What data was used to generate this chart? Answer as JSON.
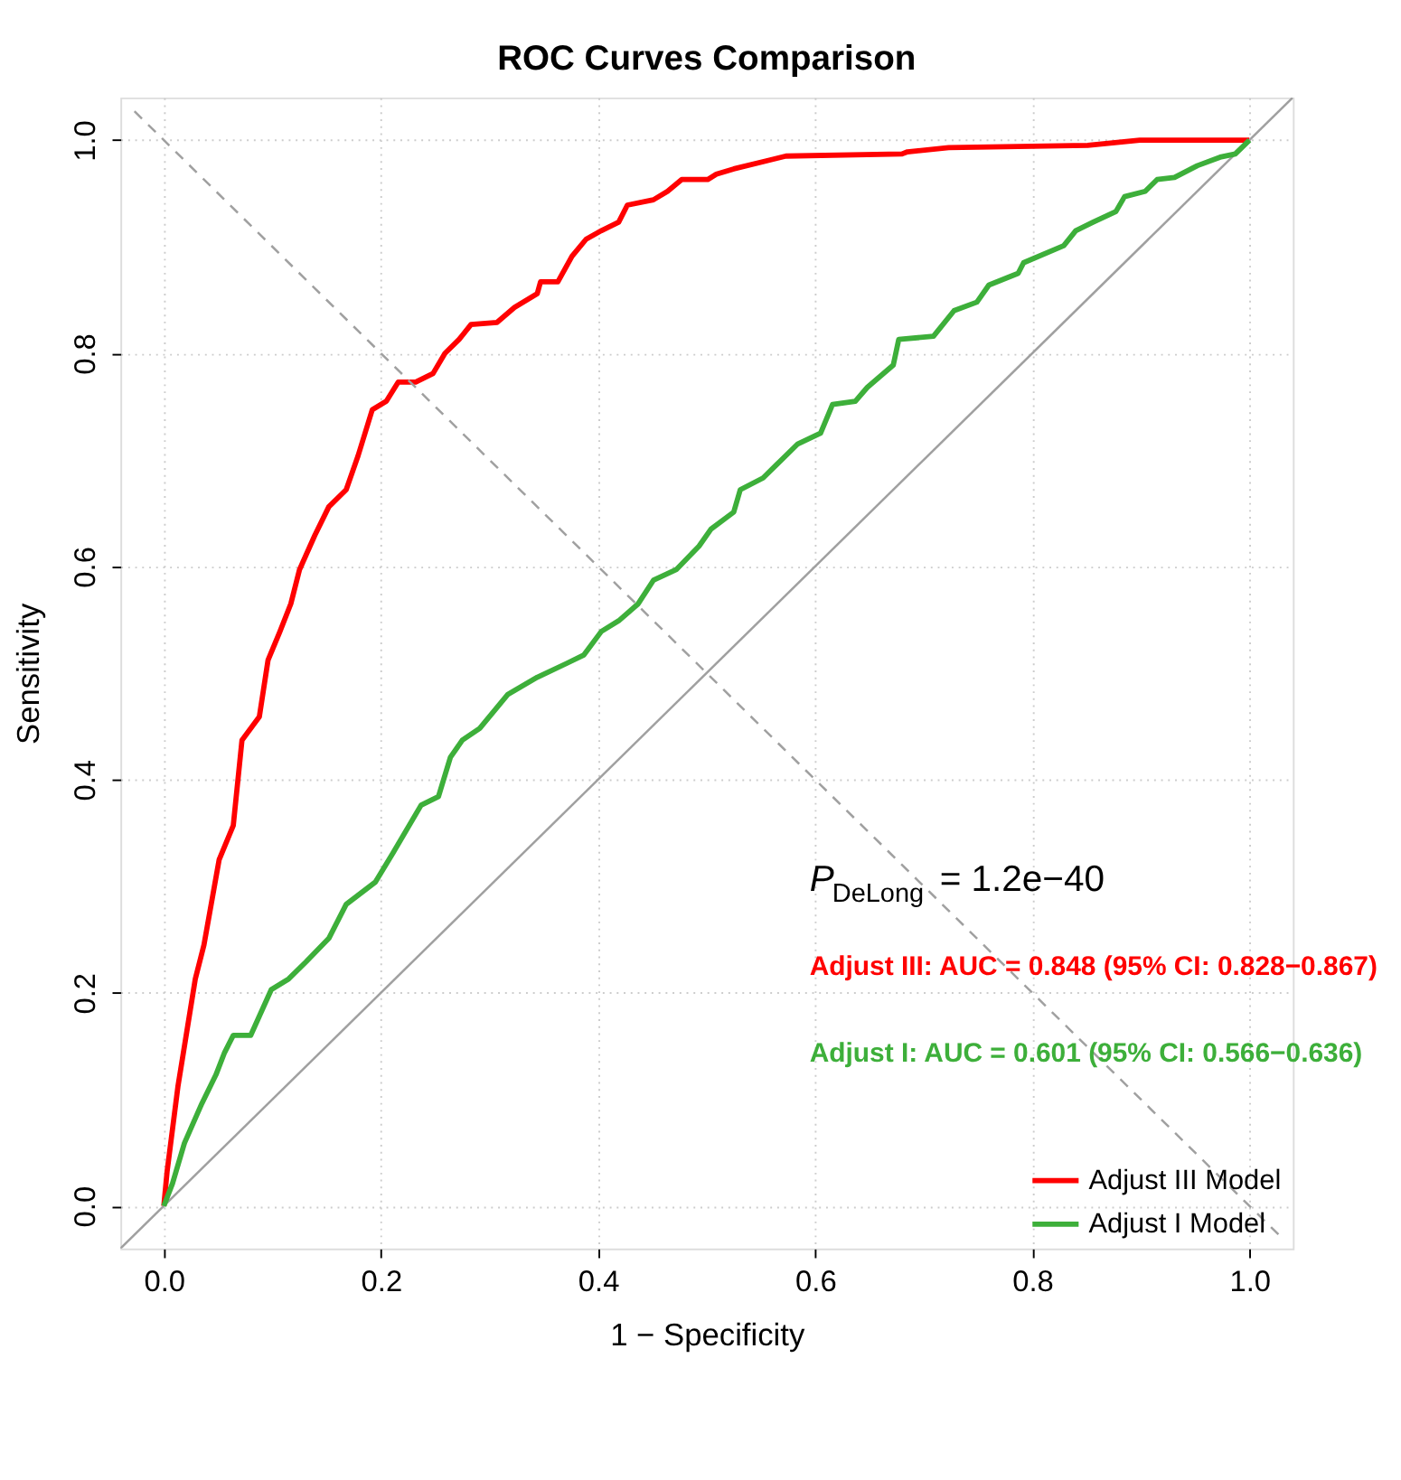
{
  "chart_data": {
    "type": "line",
    "title": "ROC Curves Comparison",
    "xlabel": "1 − Specificity",
    "ylabel": "Sensitivity",
    "xlim": [
      -0.04,
      1.04
    ],
    "ylim": [
      -0.04,
      1.04
    ],
    "xticks": [
      {
        "value": 0,
        "label": "0.0"
      },
      {
        "value": 0.2,
        "label": "0.2"
      },
      {
        "value": 0.4,
        "label": "0.4"
      },
      {
        "value": 0.6,
        "label": "0.6"
      },
      {
        "value": 0.8,
        "label": "0.8"
      },
      {
        "value": 1,
        "label": "1.0"
      }
    ],
    "yticks": [
      {
        "value": 0,
        "label": "0.0"
      },
      {
        "value": 0.2,
        "label": "0.2"
      },
      {
        "value": 0.4,
        "label": "0.4"
      },
      {
        "value": 0.6,
        "label": "0.6"
      },
      {
        "value": 0.8,
        "label": "0.8"
      },
      {
        "value": 1,
        "label": "1.0"
      }
    ],
    "grid": true,
    "legend": "bottom right",
    "marker": "none",
    "series": [
      {
        "name": "Adjust III Model",
        "color": "#ff0000",
        "line_style": "solid",
        "x": [
          0,
          0.003,
          0.013,
          0.029,
          0.037,
          0.051,
          0.064,
          0.072,
          0.088,
          0.096,
          0.107,
          0.117,
          0.125,
          0.139,
          0.152,
          0.168,
          0.179,
          0.192,
          0.205,
          0.216,
          0.232,
          0.248,
          0.259,
          0.272,
          0.283,
          0.307,
          0.323,
          0.344,
          0.347,
          0.363,
          0.376,
          0.389,
          0.403,
          0.419,
          0.427,
          0.451,
          0.464,
          0.477,
          0.501,
          0.509,
          0.525,
          0.557,
          0.573,
          0.68,
          0.685,
          0.723,
          0.851,
          0.899,
          1.0
        ],
        "values": [
          0,
          0.032,
          0.112,
          0.213,
          0.245,
          0.325,
          0.357,
          0.437,
          0.459,
          0.512,
          0.539,
          0.565,
          0.597,
          0.629,
          0.656,
          0.672,
          0.704,
          0.747,
          0.755,
          0.773,
          0.773,
          0.781,
          0.8,
          0.813,
          0.827,
          0.829,
          0.843,
          0.856,
          0.867,
          0.867,
          0.891,
          0.907,
          0.915,
          0.923,
          0.939,
          0.944,
          0.952,
          0.963,
          0.963,
          0.968,
          0.973,
          0.981,
          0.985,
          0.987,
          0.989,
          0.993,
          0.995,
          1.0,
          1.0
        ]
      },
      {
        "name": "Adjust I Model",
        "color": "#3daf3a",
        "line_style": "solid",
        "x": [
          0,
          0.008,
          0.019,
          0.035,
          0.048,
          0.056,
          0.064,
          0.08,
          0.099,
          0.115,
          0.131,
          0.152,
          0.168,
          0.195,
          0.211,
          0.237,
          0.253,
          0.264,
          0.275,
          0.291,
          0.317,
          0.344,
          0.371,
          0.387,
          0.403,
          0.419,
          0.437,
          0.451,
          0.472,
          0.493,
          0.504,
          0.525,
          0.531,
          0.552,
          0.565,
          0.584,
          0.605,
          0.616,
          0.637,
          0.648,
          0.672,
          0.677,
          0.709,
          0.728,
          0.749,
          0.76,
          0.787,
          0.792,
          0.829,
          0.84,
          0.856,
          0.877,
          0.885,
          0.904,
          0.915,
          0.931,
          0.952,
          0.973,
          0.987,
          1.0
        ],
        "values": [
          0,
          0.021,
          0.059,
          0.096,
          0.123,
          0.144,
          0.16,
          0.16,
          0.203,
          0.213,
          0.229,
          0.251,
          0.283,
          0.304,
          0.331,
          0.376,
          0.384,
          0.421,
          0.437,
          0.448,
          0.48,
          0.496,
          0.509,
          0.517,
          0.539,
          0.549,
          0.565,
          0.587,
          0.597,
          0.619,
          0.635,
          0.651,
          0.672,
          0.683,
          0.696,
          0.715,
          0.725,
          0.752,
          0.755,
          0.768,
          0.789,
          0.813,
          0.816,
          0.84,
          0.848,
          0.864,
          0.875,
          0.885,
          0.901,
          0.915,
          0.923,
          0.933,
          0.947,
          0.952,
          0.963,
          0.965,
          0.976,
          0.984,
          0.987,
          1.0
        ]
      },
      {
        "color": "#a0a0a0",
        "line_style": "solid",
        "x": [
          -0.04,
          1.04
        ],
        "values": [
          -0.04,
          1.04
        ]
      },
      {
        "color": "#a0a0a0",
        "line_style": "dashed",
        "x": [
          -0.027,
          1.027
        ],
        "values": [
          1.027,
          -0.027
        ]
      }
    ],
    "annotations": [
      "P$_{DeLong}$ = 1.2e−40",
      "Adjust III: AUC = 0.848 (95% CI: 0.828−0.867)",
      "Adjust I: AUC = 0.601 (95% CI: 0.566−0.636)"
    ]
  }
}
